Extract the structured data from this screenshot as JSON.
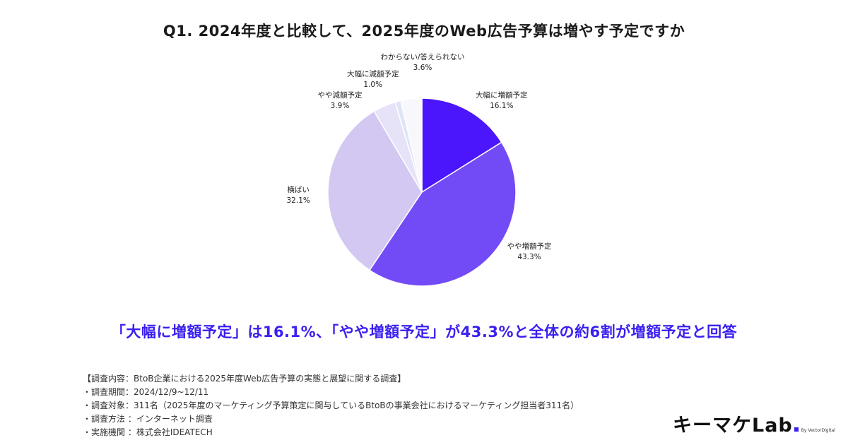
{
  "title": "Q1. 2024年度と比較して、2025年度のWeb広告予算は増やす予定ですか",
  "headline": "「大幅に増額予定」は16.1%、「やや増額予定」が43.3%と全体の約6割が増額予定と回答",
  "chart_data": {
    "type": "pie",
    "title": "Q1. 2024年度と比較して、2025年度のWeb広告予算は増やす予定ですか",
    "slices": [
      {
        "label": "大幅に増額予定",
        "value": 16.1,
        "display": "16.1%",
        "color": "#4b16fb"
      },
      {
        "label": "やや増額予定",
        "value": 43.3,
        "display": "43.3%",
        "color": "#734bf6"
      },
      {
        "label": "横ばい",
        "value": 32.1,
        "display": "32.1%",
        "color": "#d3c8f2"
      },
      {
        "label": "やや減額予定",
        "value": 3.9,
        "display": "3.9%",
        "color": "#e6e2f8"
      },
      {
        "label": "大幅に減額予定",
        "value": 1.0,
        "display": "1.0%",
        "color": "#dfe5f6"
      },
      {
        "label": "わからない/答えられない",
        "value": 3.6,
        "display": "3.6%",
        "color": "#f8f8fc"
      }
    ]
  },
  "notes": [
    "【調査内容：BtoB企業における2025年度Web広告予算の実態と展望に関する調査】",
    "・調査期間：2024/12/9~12/11",
    "・調査対象：311名（2025年度のマーケティング予算策定に関与しているBtoBの事業会社におけるマーケティング担当者311名）",
    "・調査方法 ：インターネット調査",
    "・実施機関 ：株式会社IDEATECH"
  ],
  "logo": {
    "main": "キーマケLab",
    "sub": "By VectorDigital",
    "accent": "#3a1ff0"
  }
}
